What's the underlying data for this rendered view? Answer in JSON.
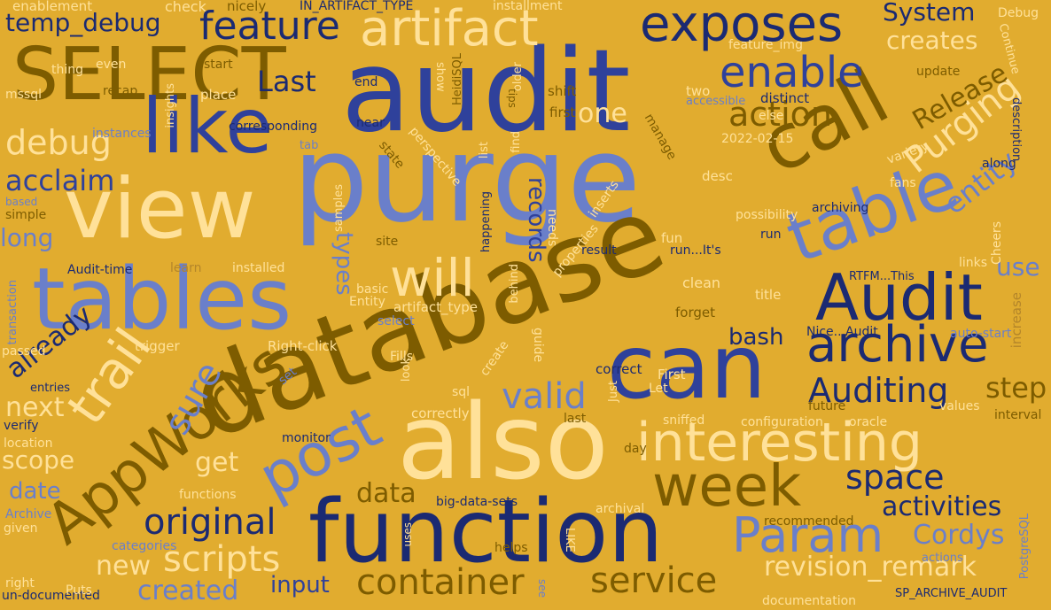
{
  "palette": {
    "background": "#e1ac2f",
    "navy": "#1b2a72",
    "blue": "#2f419b",
    "periwinkle": "#6a7fca",
    "cream": "#ffe199",
    "olive": "#7d5c00",
    "ochre": "#b3852a"
  },
  "words": [
    "purge",
    "database",
    "audit",
    "also",
    "function",
    "view",
    "tables",
    "SELECT",
    "like",
    "call",
    "exposes",
    "artifact",
    "Audit",
    "table",
    "can",
    "interesting",
    "week",
    "post",
    "AppWorks",
    "trail",
    "archive",
    "Param",
    "enable",
    "feature",
    "will",
    "temp_debug",
    "debug",
    "Purging",
    "action",
    "entity",
    "Release",
    "creates",
    "original",
    "scripts",
    "container",
    "service",
    "revision_remark",
    "space",
    "Cordys",
    "activities",
    "Auditing",
    "valid",
    "sure",
    "data",
    "records",
    "types",
    "bash",
    "already",
    "next",
    "scope",
    "date",
    "created",
    "new",
    "input",
    "get",
    "long",
    "acclaim",
    "one",
    "System",
    "Last",
    "step",
    "use",
    "IN_ARTIFACT_TYPE",
    "enablement",
    "check",
    "nicely",
    "installment",
    "Debug",
    "SP_ARCHIVE_AUDIT",
    "un-documented",
    "documentation",
    "PostgreSQL",
    "HeidiSQL",
    "mssql",
    "recap",
    "insights",
    "place",
    "corresponding",
    "2022-02-15",
    "instances",
    "based",
    "simple",
    "Audit-time",
    "learn",
    "installed",
    "transaction",
    "basic",
    "Entity",
    "artifact_type",
    "select",
    "Right-click",
    "trigger",
    "passed",
    "entries",
    "verify",
    "location",
    "monitor",
    "functions",
    "Archive",
    "given",
    "categories",
    "right",
    "Puts",
    "big-data-sets",
    "archival",
    "recommended",
    "helps",
    "LIKE",
    "uses",
    "see",
    "actions",
    "Cheers",
    "increase",
    "auto-start",
    "RTFM...This",
    "Nice...Audit",
    "title",
    "clean",
    "run...It's",
    "result",
    "fun",
    "possibility",
    "archiving",
    "run",
    "desc",
    "fans",
    "along",
    "variety",
    "description",
    "Continue",
    "update",
    "feature_img",
    "shift",
    "first",
    "distinct",
    "two",
    "accessible",
    "else",
    "manage",
    "find",
    "tips",
    "older",
    "show",
    "end",
    "thing",
    "even",
    "start",
    "state",
    "perspective",
    "samples",
    "happening",
    "list",
    "needs",
    "properties",
    "inserts",
    "behind",
    "site",
    "guide",
    "forget",
    "links",
    "interval",
    "values",
    "configuration",
    "oracle",
    "future",
    "Let",
    "First",
    "correct",
    "sniffed",
    "day",
    "last",
    "correctly",
    "Just",
    "look",
    "sql",
    "create",
    "set",
    "Fills",
    "near",
    "tab",
    "mssql"
  ]
}
